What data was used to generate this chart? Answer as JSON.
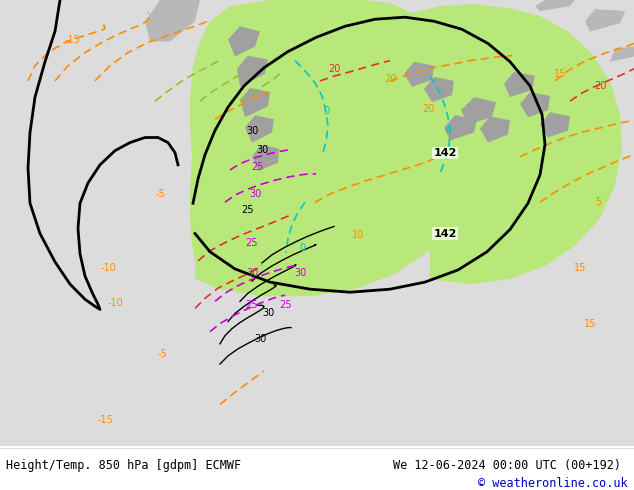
{
  "title_left": "Height/Temp. 850 hPa [gdpm] ECMWF",
  "title_right": "We 12-06-2024 00:00 UTC (00+192)",
  "copyright": "© weatheronline.co.uk",
  "bg_color": "#e8e8e8",
  "land_color": "#d0d0d0",
  "green_area_color": "#c8f0a0",
  "fig_width": 6.34,
  "fig_height": 4.9,
  "dpi": 100,
  "bottom_bar_color": "#f0f0f0",
  "title_fontsize": 8.5,
  "copyright_fontsize": 8.5,
  "copyright_color": "#0000cc"
}
